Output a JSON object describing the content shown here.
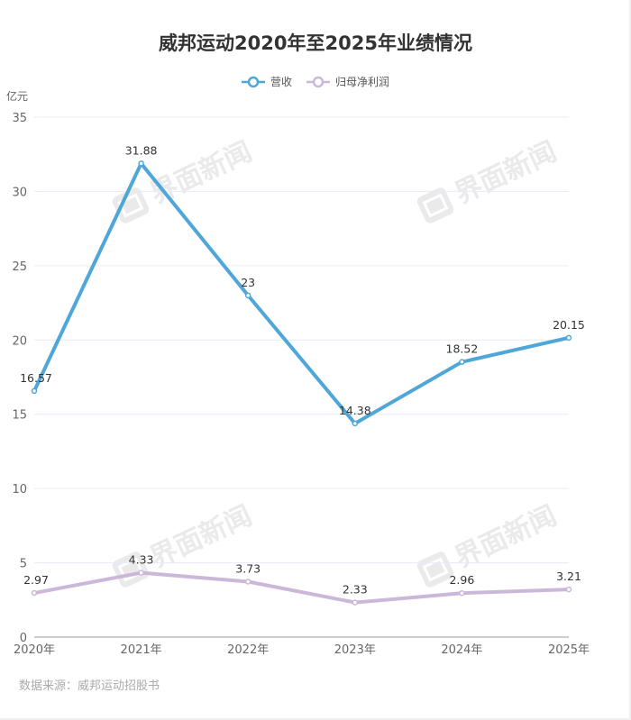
{
  "title": "威邦运动2020年至2025年业绩情况",
  "legend": {
    "items": [
      {
        "label": "营收",
        "color": "#4fa6d9"
      },
      {
        "label": "归母净利润",
        "color": "#cbb8d9"
      }
    ]
  },
  "axis": {
    "unit": "亿元",
    "y_ticks": [
      "0",
      "5",
      "10",
      "15",
      "20",
      "25",
      "30",
      "35"
    ],
    "x_ticks": [
      "2020年",
      "2021年",
      "2022年",
      "2023年",
      "2024年",
      "2025年"
    ]
  },
  "watermark": "界面新闻",
  "source": "数据来源：威邦运动招股书",
  "colors": {
    "revenue": "#4fa6d9",
    "profit": "#cbb8d9",
    "grid": "#e6ecf4",
    "axis": "#999999"
  },
  "chart_data": {
    "type": "line",
    "title": "威邦运动2020年至2025年业绩情况",
    "xlabel": "",
    "ylabel": "亿元",
    "categories": [
      "2020年",
      "2021年",
      "2022年",
      "2023年",
      "2024年",
      "2025年"
    ],
    "series": [
      {
        "name": "营收",
        "values": [
          16.57,
          31.88,
          23,
          14.38,
          18.52,
          20.15
        ],
        "labels": [
          "16.57",
          "31.88",
          "23",
          "14.38",
          "18.52",
          "20.15"
        ]
      },
      {
        "name": "归母净利润",
        "values": [
          2.97,
          4.33,
          3.73,
          2.33,
          2.96,
          3.21
        ],
        "labels": [
          "2.97",
          "4.33",
          "3.73",
          "2.33",
          "2.96",
          "3.21"
        ]
      }
    ],
    "ylim": [
      0,
      35
    ],
    "yticks": [
      0,
      5,
      10,
      15,
      20,
      25,
      30,
      35
    ],
    "grid": true,
    "legend_position": "top"
  }
}
